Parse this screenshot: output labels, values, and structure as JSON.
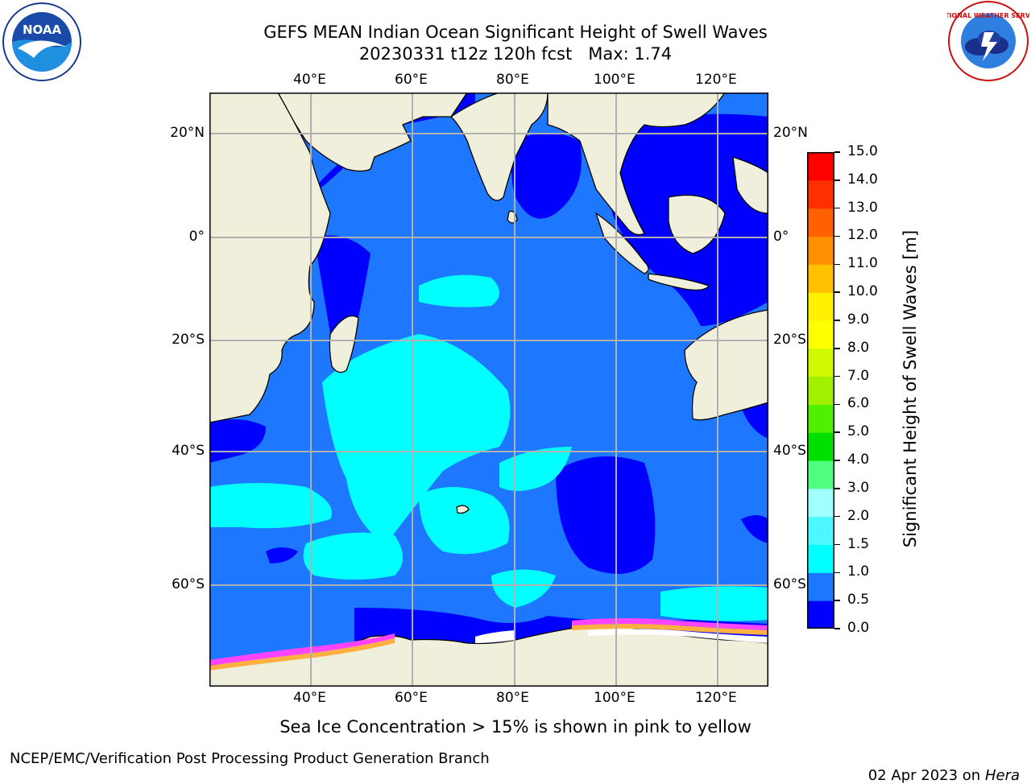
{
  "header": {
    "title_line1": "GEFS MEAN Indian Ocean Significant Height of Swell Waves",
    "title_line2": "20230331 t12z 120h fcst   Max: 1.74"
  },
  "logos": {
    "noaa_text": "NOAA",
    "nws_text": "NATIONAL WEATHER SERVICE"
  },
  "map": {
    "lon_ticks": [
      "40°E",
      "60°E",
      "80°E",
      "100°E",
      "120°E"
    ],
    "lat_ticks": [
      "20°N",
      "0°",
      "20°S",
      "40°S",
      "60°S"
    ],
    "lon_range": [
      20,
      130
    ],
    "lat_range": [
      -74,
      27
    ],
    "ocean_color": "#1e78ff",
    "land_color": "#efefdc",
    "ice_colors": [
      "#ff44ff",
      "#ffb040",
      "#ffffff"
    ]
  },
  "colorbar": {
    "label": "Significant Height of Swell Waves [m]",
    "ticks": [
      "0.0",
      "0.5",
      "1.0",
      "1.5",
      "2.0",
      "3.0",
      "4.0",
      "5.0",
      "6.0",
      "7.0",
      "8.0",
      "9.0",
      "10.0",
      "11.0",
      "12.0",
      "13.0",
      "14.0",
      "15.0"
    ],
    "colors": [
      "#0000ff",
      "#1e78ff",
      "#00ffff",
      "#4cf7ff",
      "#a0ffff",
      "#50ff80",
      "#00e000",
      "#50f000",
      "#a0f000",
      "#d0f800",
      "#ffff00",
      "#fff000",
      "#ffc000",
      "#ff9000",
      "#ff6000",
      "#ff3000",
      "#ff0000"
    ]
  },
  "footer": {
    "note": "Sea Ice Concentration > 15% is shown in pink to yellow",
    "left": "NCEP/EMC/Verification Post Processing Product Generation Branch",
    "date": "02 Apr 2023 on ",
    "host": "Hera"
  }
}
